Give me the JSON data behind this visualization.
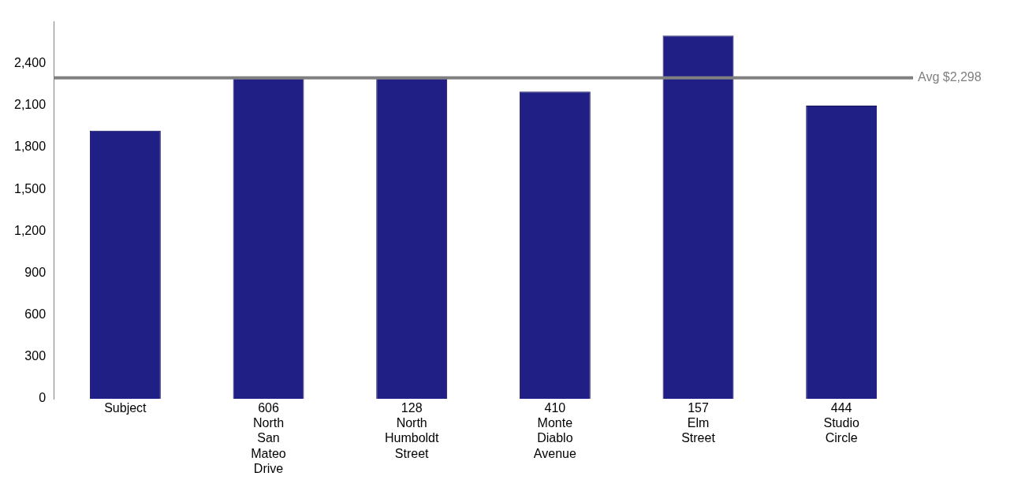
{
  "chart_data": {
    "type": "bar",
    "categories": [
      "Subject",
      "606 North San Mateo Drive",
      "128 North Humboldt Street",
      "410 Monte Diablo Avenue",
      "157 Elm Street",
      "444 Studio Circle"
    ],
    "series": [
      {
        "color": "#1f1f85",
        "values": [
          1920,
          2295,
          2295,
          2200,
          2600,
          2100
        ]
      }
    ],
    "ylim": [
      0,
      2700
    ],
    "yticks": [
      {
        "value": 0,
        "label": "0"
      },
      {
        "value": 300,
        "label": "300"
      },
      {
        "value": 600,
        "label": "600"
      },
      {
        "value": 900,
        "label": "900"
      },
      {
        "value": 1200,
        "label": "1,200"
      },
      {
        "value": 1500,
        "label": "1,500"
      },
      {
        "value": 1800,
        "label": "1,800"
      },
      {
        "value": 2100,
        "label": "2,100"
      },
      {
        "value": 2400,
        "label": "2,400"
      }
    ],
    "grid": false,
    "legend": false,
    "ref_lines": [
      {
        "axis": "y",
        "value": 2298,
        "label": "Avg $2,298",
        "color": "#808080"
      }
    ]
  }
}
